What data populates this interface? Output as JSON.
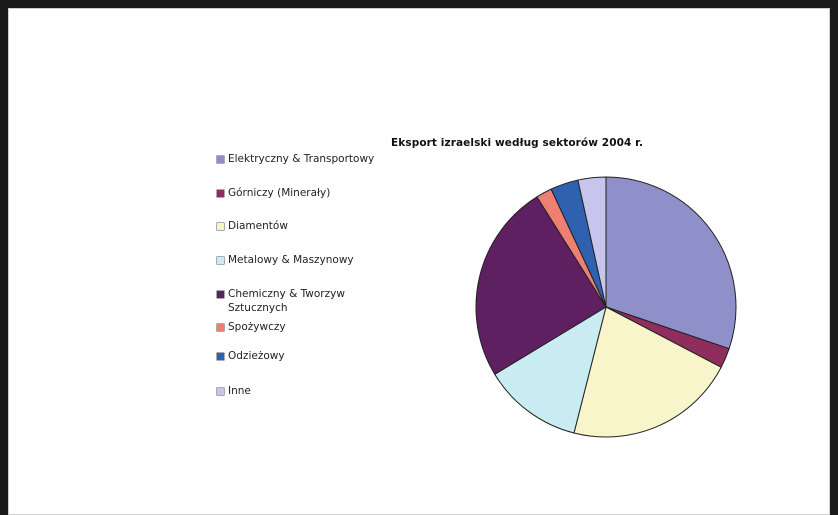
{
  "chart_data": {
    "type": "pie",
    "title": "Eksport izraelski według sektorów 2004 r.",
    "legend_position": "left",
    "slices": [
      {
        "label": "Elektryczny & Transportowy",
        "value": 30.5,
        "color": "#8f8fc9"
      },
      {
        "label": "Górniczy (Minerały)",
        "value": 2.5,
        "color": "#8e2d5e"
      },
      {
        "label": "Diamentów",
        "value": 21.5,
        "color": "#f7f5c9"
      },
      {
        "label": "Metalowy & Maszynowy",
        "value": 12.5,
        "color": "#c9ecf2"
      },
      {
        "label": "Chemiczny & Tworzyw Sztucznych",
        "value": 25.0,
        "color": "#5e2060"
      },
      {
        "label": "Spożywczy",
        "value": 2.0,
        "color": "#f07f73"
      },
      {
        "label": "Odzieżowy",
        "value": 3.5,
        "color": "#2e62b1"
      },
      {
        "label": "Inne",
        "value": 3.5,
        "color": "#c8c5ec"
      }
    ]
  }
}
